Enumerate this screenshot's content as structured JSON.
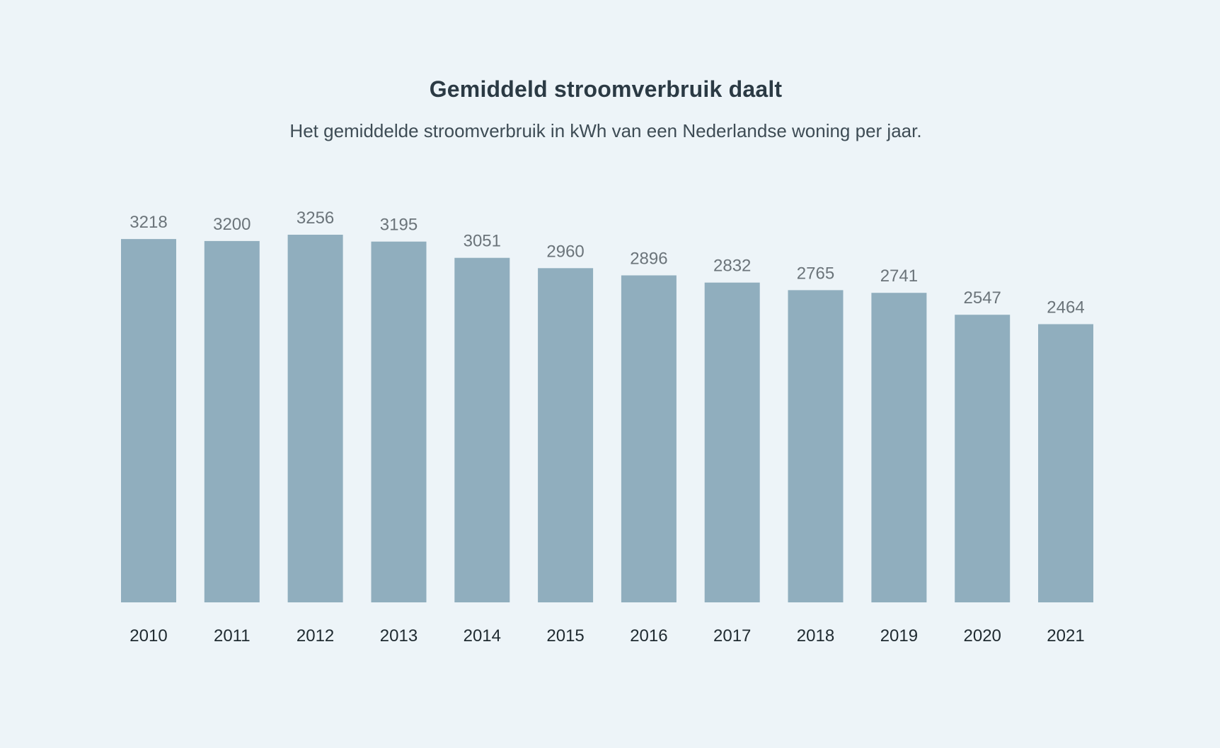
{
  "chart": {
    "title": "Gemiddeld stroomverbruik daalt",
    "subtitle": "Het gemiddelde stroomverbruik in kWh van een Nederlandse woning per jaar."
  },
  "colors": {
    "background": "#edf4f8",
    "bar": "#90aebe",
    "value_label": "#6b747a",
    "tick_label": "#1f2a30"
  },
  "chart_data": {
    "type": "bar",
    "title": "Gemiddeld stroomverbruik daalt",
    "subtitle": "Het gemiddelde stroomverbruik in kWh van een Nederlandse woning per jaar.",
    "xlabel": "",
    "ylabel": "",
    "categories": [
      "2010",
      "2011",
      "2012",
      "2013",
      "2014",
      "2015",
      "2016",
      "2017",
      "2018",
      "2019",
      "2020",
      "2021"
    ],
    "values": [
      3218,
      3200,
      3256,
      3195,
      3051,
      2960,
      2896,
      2832,
      2765,
      2741,
      2547,
      2464
    ],
    "ylim": [
      0,
      3256
    ],
    "grid": false,
    "legend": "none"
  }
}
